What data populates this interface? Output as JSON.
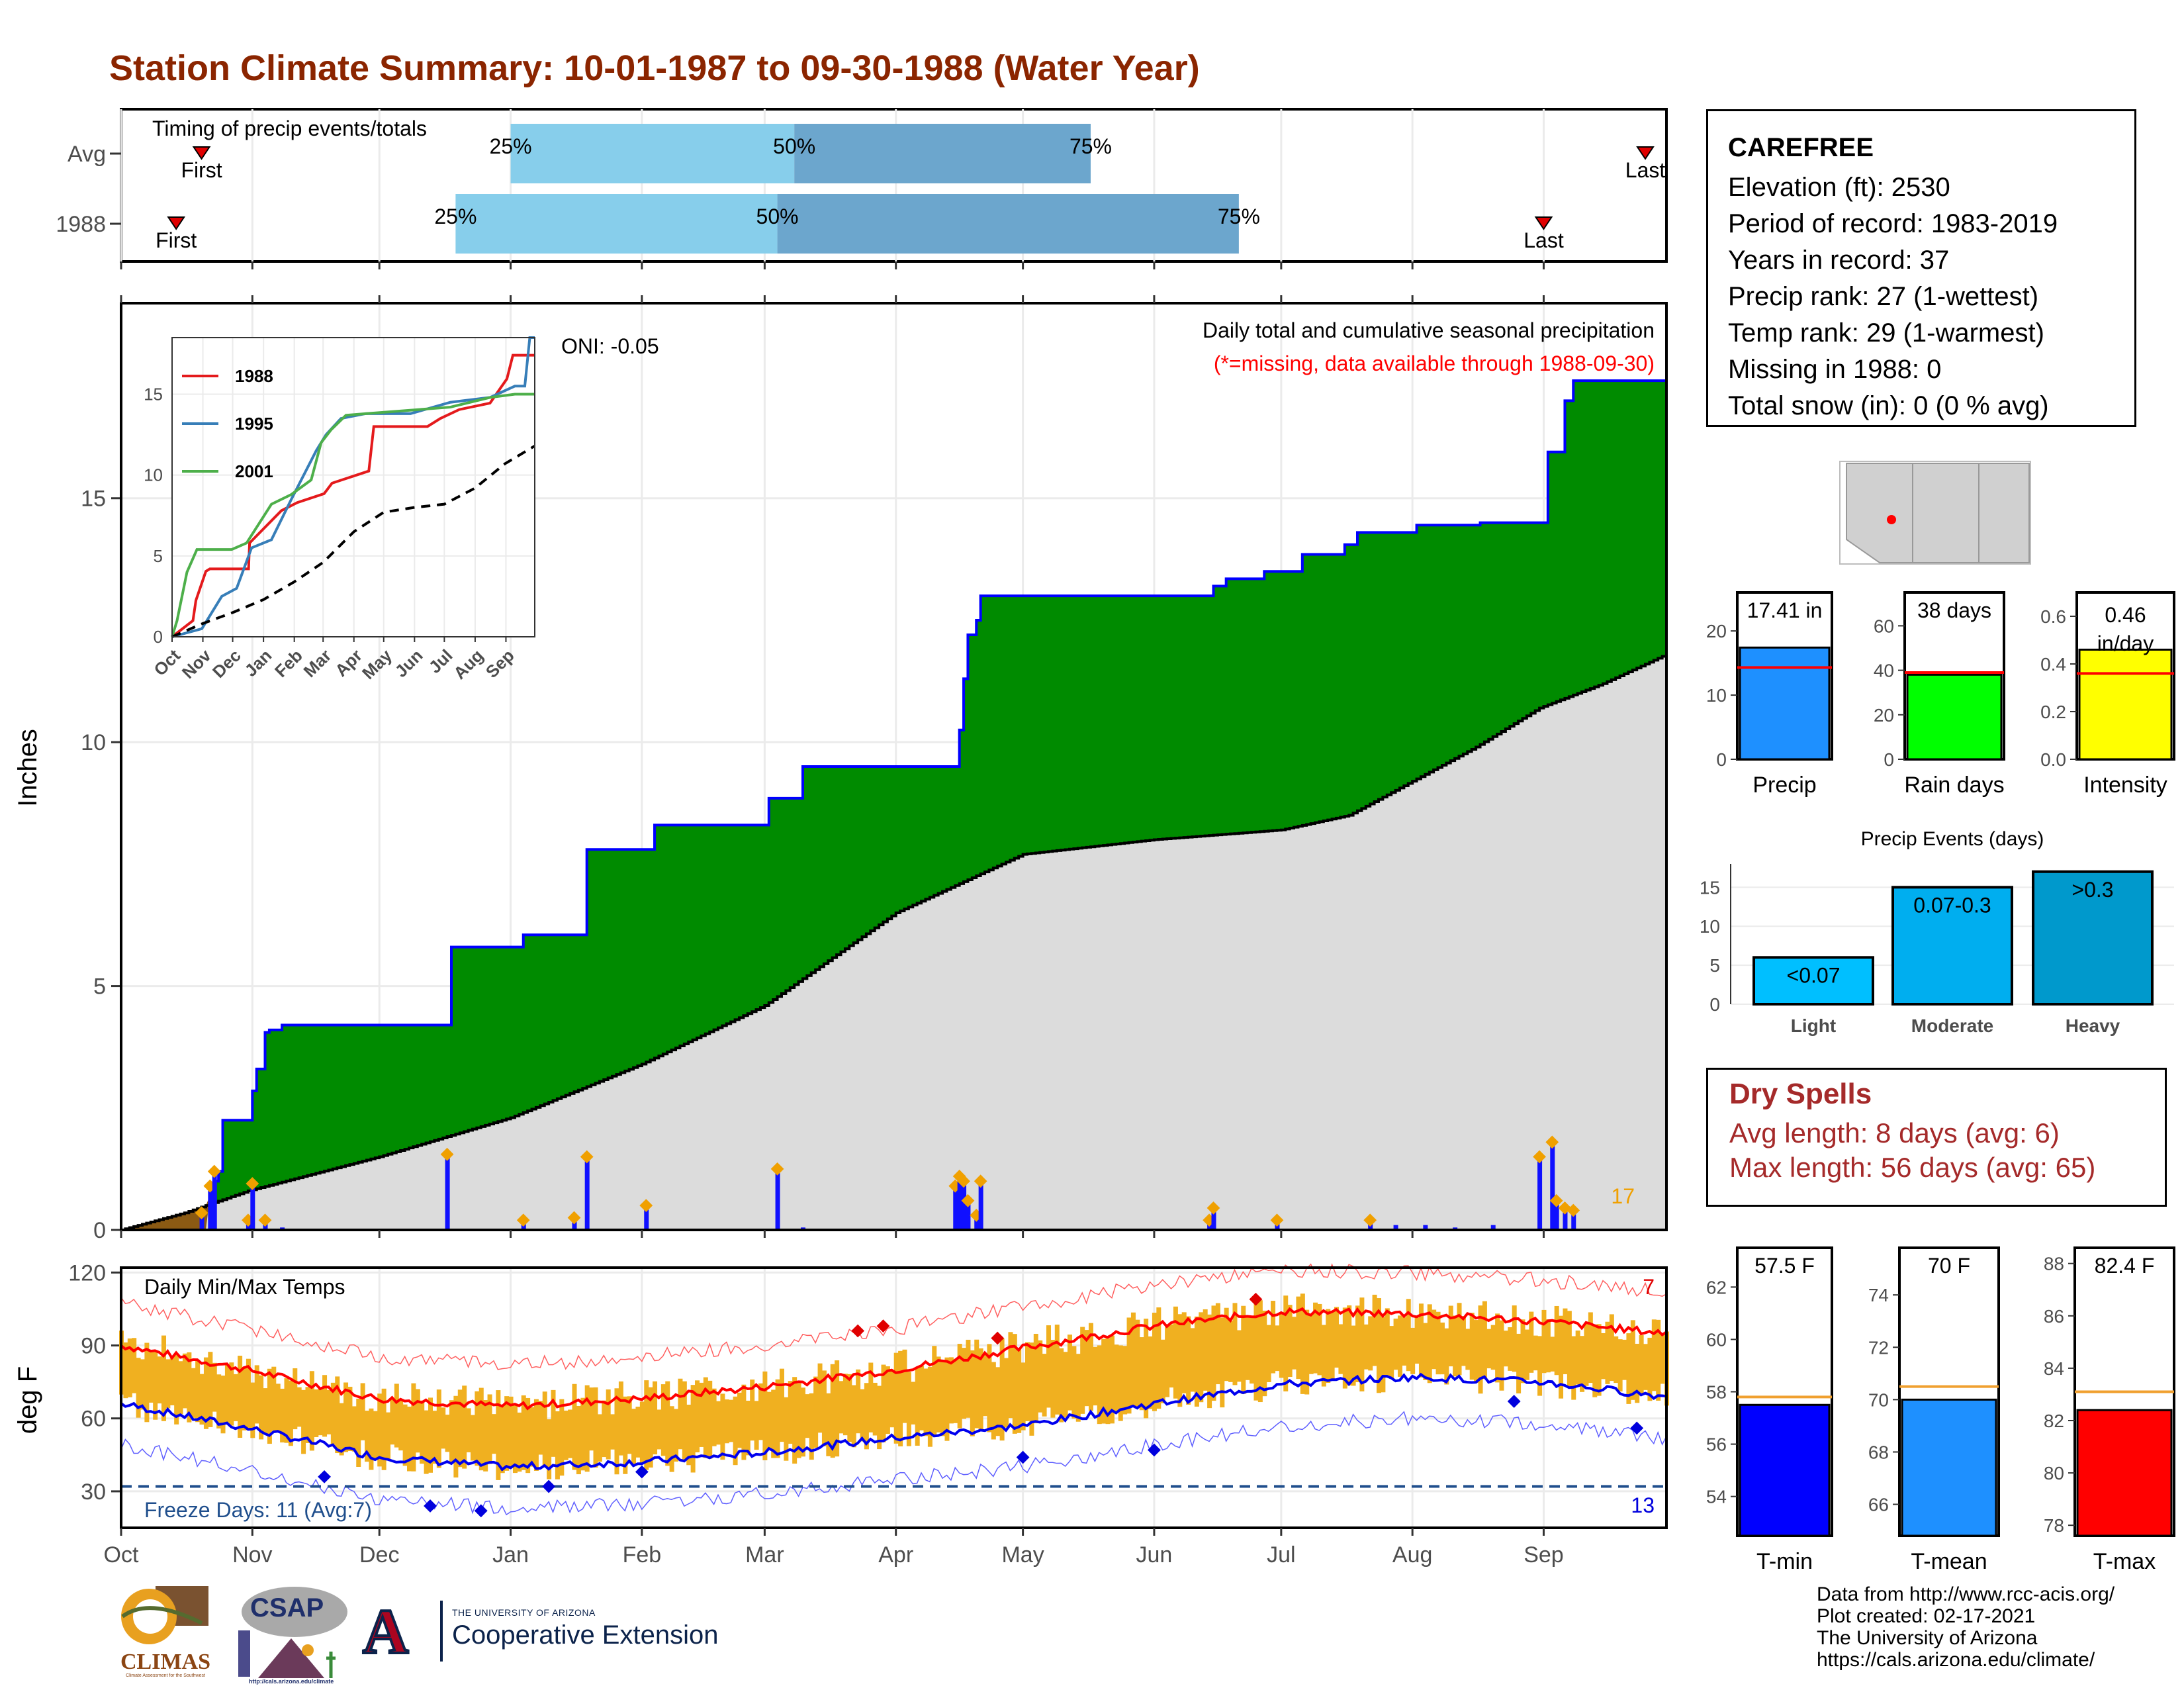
{
  "page_title": "Station Climate Summary: 10-01-1987 to 09-30-1988 (Water Year)",
  "station": {
    "name": "CAREFREE",
    "lines": [
      "Elevation (ft): 2530",
      "Period of record: 1983-2019",
      "Years in record: 37",
      "Precip rank: 27 (1-wettest)",
      "Temp rank: 29 (1-warmest)",
      "Missing in 1988: 0",
      "Total snow (in): 0 (0 % avg)"
    ]
  },
  "dry_spells": {
    "title": "Dry Spells",
    "avg": "Avg length: 8 days (avg: 6)",
    "max": "Max length: 56 days (avg: 65)"
  },
  "credits": [
    "Data from http://www.rcc-acis.org/",
    "Plot created: 02-17-2021",
    "The University of Arizona",
    "https://cals.arizona.edu/climate/"
  ],
  "logos": {
    "climas": "CLIMAS",
    "climas_sub": "Climate Assessment for the Southwest",
    "csap": "CSAP",
    "csap_url": "http://cals.arizona.edu/climate",
    "ua_letter": "A",
    "ua_small": "THE UNIVERSITY OF ARIZONA",
    "ua_big": "Cooperative Extension"
  },
  "colors": {
    "title": "#8B2500",
    "green_fill": "#008B00",
    "blue_line": "#0000FF",
    "gray_fill": "#DCDCDC",
    "brown_fill": "#8B5A13",
    "orange": "#F0A000",
    "light_blue": "#87CEEB",
    "mid_blue": "#6CA6CD",
    "tmin": "#0000FF",
    "tmean": "#1E90FF",
    "tmax": "#FF0000",
    "rain_days": "#00FF00",
    "intensity": "#FFFF00"
  },
  "chart_data": [
    {
      "id": "timing",
      "type": "bar",
      "title": "Timing of precip events/totals",
      "rows": [
        {
          "label": "Avg",
          "first": "Oct 20",
          "p25": "Jan 1",
          "p50": "Mar 8",
          "p75": "May 17",
          "last": "Sep 25"
        },
        {
          "label": "1988",
          "first": "Oct 14",
          "p25": "Dec 19",
          "p50": "Mar 4",
          "p75": "Jun 21",
          "last": "Sep 1"
        }
      ],
      "marker_labels": {
        "first": "First",
        "last": "Last",
        "p25": "25%",
        "p50": "50%",
        "p75": "75%"
      }
    },
    {
      "id": "precip",
      "type": "area",
      "ylabel": "Inches",
      "ylim": [
        0,
        19
      ],
      "yticks": [
        0,
        5,
        10,
        15
      ],
      "annotation_title": "Daily total and cumulative seasonal precipitation",
      "annotation_missing": "(*=missing, data available through 1988-09-30)",
      "oni": "ONI: -0.05",
      "event_count": "17",
      "cumulative_1988": [
        [
          0,
          0
        ],
        [
          21,
          0.7
        ],
        [
          22,
          1.0
        ],
        [
          23,
          1.2
        ],
        [
          24,
          2.25
        ],
        [
          30,
          2.25
        ],
        [
          31,
          2.85
        ],
        [
          32,
          3.3
        ],
        [
          34,
          4.05
        ],
        [
          35,
          4.1
        ],
        [
          37,
          4.1
        ],
        [
          38,
          4.2
        ],
        [
          44,
          4.2
        ],
        [
          77,
          4.2
        ],
        [
          78,
          5.8
        ],
        [
          93,
          5.8
        ],
        [
          95,
          6.05
        ],
        [
          109,
          6.05
        ],
        [
          110,
          7.8
        ],
        [
          125,
          7.8
        ],
        [
          126,
          8.3
        ],
        [
          152,
          8.3
        ],
        [
          153,
          8.85
        ],
        [
          160,
          8.85
        ],
        [
          161,
          9.5
        ],
        [
          197,
          9.5
        ],
        [
          198,
          10.25
        ],
        [
          199,
          11.3
        ],
        [
          200,
          12.2
        ],
        [
          202,
          12.5
        ],
        [
          203,
          13.0
        ],
        [
          257,
          13.0
        ],
        [
          258,
          13.2
        ],
        [
          261,
          13.35
        ],
        [
          270,
          13.5
        ],
        [
          279,
          13.85
        ],
        [
          289,
          14.05
        ],
        [
          292,
          14.3
        ],
        [
          305,
          14.3
        ],
        [
          306,
          14.45
        ],
        [
          320,
          14.45
        ],
        [
          321,
          14.5
        ],
        [
          336,
          14.5
        ],
        [
          337,
          15.95
        ],
        [
          340,
          15.95
        ],
        [
          341,
          17.0
        ],
        [
          343,
          17.41
        ],
        [
          365,
          17.41
        ]
      ],
      "average_cumulative": [
        [
          0,
          0
        ],
        [
          15,
          0.35
        ],
        [
          30,
          0.8
        ],
        [
          61,
          1.5
        ],
        [
          92,
          2.3
        ],
        [
          123,
          3.4
        ],
        [
          152,
          4.6
        ],
        [
          183,
          6.5
        ],
        [
          213,
          7.7
        ],
        [
          244,
          8.0
        ],
        [
          274,
          8.2
        ],
        [
          290,
          8.5
        ],
        [
          305,
          9.2
        ],
        [
          320,
          9.9
        ],
        [
          335,
          10.7
        ],
        [
          350,
          11.2
        ],
        [
          365,
          11.8
        ]
      ],
      "daily_events": [
        [
          19,
          0.35
        ],
        [
          21,
          0.9
        ],
        [
          22,
          1.2
        ],
        [
          30,
          0.2
        ],
        [
          31,
          0.95
        ],
        [
          34,
          0.2
        ],
        [
          38,
          0.05
        ],
        [
          77,
          1.55
        ],
        [
          95,
          0.2
        ],
        [
          107,
          0.25
        ],
        [
          110,
          1.5
        ],
        [
          124,
          0.5
        ],
        [
          155,
          1.25
        ],
        [
          161,
          0.05
        ],
        [
          197,
          0.9
        ],
        [
          198,
          1.1
        ],
        [
          199,
          1.0
        ],
        [
          200,
          0.6
        ],
        [
          202,
          0.3
        ],
        [
          203,
          1.0
        ],
        [
          257,
          0.2
        ],
        [
          258,
          0.45
        ],
        [
          273,
          0.2
        ],
        [
          295,
          0.2
        ],
        [
          301,
          0.1
        ],
        [
          308,
          0.1
        ],
        [
          315,
          0.05
        ],
        [
          324,
          0.1
        ],
        [
          335,
          1.5
        ],
        [
          338,
          1.8
        ],
        [
          339,
          0.6
        ],
        [
          341,
          0.45
        ],
        [
          343,
          0.4
        ]
      ]
    },
    {
      "id": "inset",
      "type": "line",
      "ylim": [
        0,
        18.5
      ],
      "yticks": [
        0,
        5,
        10,
        15
      ],
      "xticks": [
        "Oct",
        "Nov",
        "Dec",
        "Jan",
        "Feb",
        "Mar",
        "Apr",
        "May",
        "Jun",
        "Jul",
        "Aug",
        "Sep"
      ],
      "series": [
        {
          "name": "1988",
          "color": "#E41A1C",
          "points": [
            [
              0,
              0
            ],
            [
              21,
              1.0
            ],
            [
              24,
              2.25
            ],
            [
              34,
              4.05
            ],
            [
              38,
              4.2
            ],
            [
              77,
              4.2
            ],
            [
              78,
              5.8
            ],
            [
              110,
              7.8
            ],
            [
              126,
              8.3
            ],
            [
              153,
              8.85
            ],
            [
              161,
              9.5
            ],
            [
              198,
              10.25
            ],
            [
              203,
              13.0
            ],
            [
              257,
              13.0
            ],
            [
              270,
              13.5
            ],
            [
              289,
              14.05
            ],
            [
              320,
              14.45
            ],
            [
              337,
              15.95
            ],
            [
              343,
              17.41
            ],
            [
              365,
              17.41
            ]
          ]
        },
        {
          "name": "1995",
          "color": "#377EB8",
          "points": [
            [
              0,
              0
            ],
            [
              30,
              0.5
            ],
            [
              50,
              2.5
            ],
            [
              65,
              3.0
            ],
            [
              80,
              5.5
            ],
            [
              100,
              6.0
            ],
            [
              120,
              8.5
            ],
            [
              145,
              11.5
            ],
            [
              155,
              12.5
            ],
            [
              170,
              13.5
            ],
            [
              195,
              13.8
            ],
            [
              240,
              13.8
            ],
            [
              280,
              14.5
            ],
            [
              320,
              14.8
            ],
            [
              345,
              15.5
            ],
            [
              355,
              15.5
            ],
            [
              360,
              18.5
            ],
            [
              365,
              18.5
            ]
          ]
        },
        {
          "name": "2001",
          "color": "#4DAF4A",
          "points": [
            [
              0,
              0
            ],
            [
              5,
              1.0
            ],
            [
              15,
              4.0
            ],
            [
              25,
              5.4
            ],
            [
              60,
              5.4
            ],
            [
              75,
              5.8
            ],
            [
              100,
              8.2
            ],
            [
              120,
              8.8
            ],
            [
              140,
              9.7
            ],
            [
              150,
              12.0
            ],
            [
              160,
              12.8
            ],
            [
              175,
              13.7
            ],
            [
              195,
              13.8
            ],
            [
              280,
              14.2
            ],
            [
              320,
              14.8
            ],
            [
              345,
              15.0
            ],
            [
              365,
              15.0
            ]
          ]
        },
        {
          "name": "",
          "dashed": true,
          "color": "#000000",
          "points": [
            [
              0,
              0
            ],
            [
              30,
              0.8
            ],
            [
              61,
              1.5
            ],
            [
              92,
              2.3
            ],
            [
              123,
              3.4
            ],
            [
              152,
              4.6
            ],
            [
              183,
              6.5
            ],
            [
              213,
              7.7
            ],
            [
              244,
              8.0
            ],
            [
              274,
              8.2
            ],
            [
              305,
              9.2
            ],
            [
              335,
              10.7
            ],
            [
              365,
              11.8
            ]
          ]
        }
      ]
    },
    {
      "id": "temps",
      "type": "line",
      "title": "Daily Min/Max Temps",
      "ylabel": "deg F",
      "ylim": [
        15,
        122
      ],
      "yticks": [
        30,
        60,
        90,
        120
      ],
      "xticks": [
        "Oct",
        "Nov",
        "Dec",
        "Jan",
        "Feb",
        "Mar",
        "Apr",
        "May",
        "Jun",
        "Jul",
        "Aug",
        "Sep"
      ],
      "freeze_text": "Freeze Days: 11 (Avg:7)",
      "record_high_count": "7",
      "record_low_count": "13",
      "freeze_line": 32,
      "avg_max": [
        [
          0,
          90
        ],
        [
          30,
          80
        ],
        [
          61,
          68
        ],
        [
          92,
          65
        ],
        [
          122,
          68
        ],
        [
          152,
          73
        ],
        [
          183,
          80
        ],
        [
          213,
          89
        ],
        [
          244,
          98
        ],
        [
          274,
          104
        ],
        [
          305,
          103
        ],
        [
          335,
          100
        ],
        [
          365,
          95
        ]
      ],
      "avg_min": [
        [
          0,
          66
        ],
        [
          30,
          56
        ],
        [
          61,
          44
        ],
        [
          92,
          40
        ],
        [
          122,
          42
        ],
        [
          152,
          46
        ],
        [
          183,
          52
        ],
        [
          213,
          57
        ],
        [
          244,
          66
        ],
        [
          274,
          74
        ],
        [
          305,
          77
        ],
        [
          335,
          75
        ],
        [
          365,
          69
        ]
      ]
    },
    {
      "id": "precip_summary",
      "type": "bar",
      "categories": [
        "Precip",
        "Rain days",
        "Intensity"
      ],
      "values": [
        17.41,
        38,
        0.46
      ],
      "averages": [
        14.3,
        39,
        0.36
      ],
      "labels": [
        "17.41 in",
        "38 days",
        "0.46 in/day"
      ],
      "ylims": [
        [
          0,
          26
        ],
        [
          0,
          75
        ],
        [
          0,
          0.7
        ]
      ]
    },
    {
      "id": "precip_events",
      "type": "bar",
      "title": "Precip Events (days)",
      "categories": [
        "Light",
        "Moderate",
        "Heavy"
      ],
      "values": [
        6,
        15,
        17
      ],
      "labels": [
        "<0.07",
        "0.07-0.3",
        ">0.3"
      ],
      "ylim": [
        0,
        18
      ]
    },
    {
      "id": "temp_summary",
      "type": "bar",
      "categories": [
        "T-min",
        "T-mean",
        "T-max"
      ],
      "values": [
        57.5,
        70,
        82.4
      ],
      "averages": [
        57.8,
        70.5,
        83.1
      ],
      "labels": [
        "57.5 F",
        "70 F",
        "82.4 F"
      ]
    }
  ]
}
